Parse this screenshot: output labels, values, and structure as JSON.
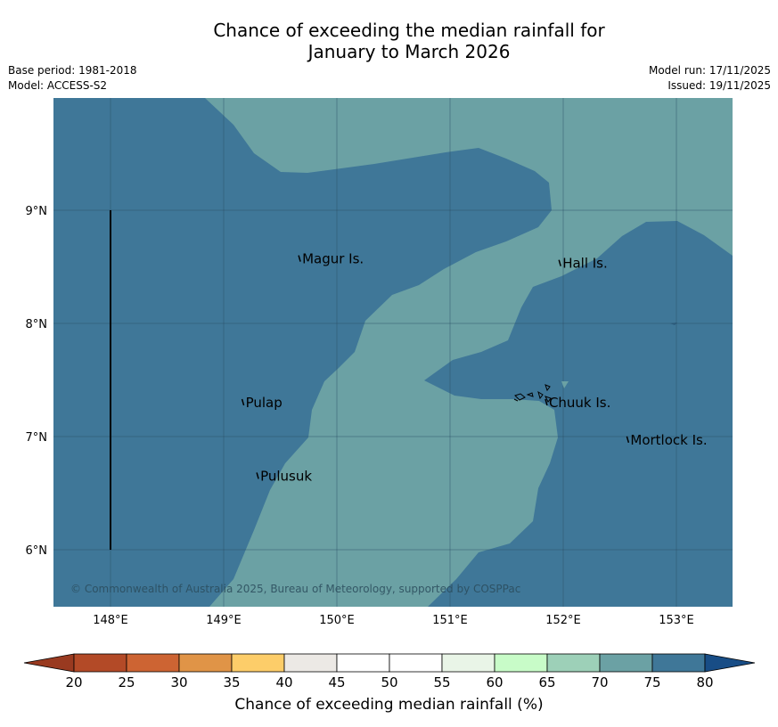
{
  "title_line1": "Chance of exceeding the median rainfall for",
  "title_line2": "January to March 2026",
  "meta_left": {
    "base_period": "Base period: 1981-2018",
    "model": "Model: ACCESS-S2"
  },
  "meta_right": {
    "model_run": "Model run: 17/11/2025",
    "issued": "Issued: 19/11/2025"
  },
  "axes": {
    "lon_ticks": [
      "148°E",
      "149°E",
      "150°E",
      "151°E",
      "152°E",
      "153°E"
    ],
    "lat_ticks": [
      "9°N",
      "8°N",
      "7°N",
      "6°N"
    ]
  },
  "places": [
    {
      "name": "Magur Is.",
      "lon": 149.67,
      "lat": 8.57
    },
    {
      "name": "Hall Is.",
      "lon": 151.97,
      "lat": 8.53
    },
    {
      "name": "Pulap",
      "lon": 149.17,
      "lat": 7.3
    },
    {
      "name": "Chuuk Is.",
      "lon": 151.85,
      "lat": 7.3
    },
    {
      "name": "Mortlock Is.",
      "lon": 152.57,
      "lat": 6.97
    },
    {
      "name": "Pulusuk",
      "lon": 149.3,
      "lat": 6.65
    }
  ],
  "copyright": "© Commonwealth of Australia 2025, Bureau of Meteorology, supported by COSPPac",
  "colorbar": {
    "label": "Chance of exceeding median rainfall (%)",
    "ticks": [
      "20",
      "25",
      "30",
      "35",
      "40",
      "45",
      "50",
      "55",
      "60",
      "65",
      "70",
      "75",
      "80"
    ],
    "colors": [
      "#b34a27",
      "#cd6433",
      "#e09447",
      "#fdcd69",
      "#ece9e5",
      "#ffffff",
      "#ffffff",
      "#e9f5e7",
      "#c8fcc8",
      "#9dd0b8",
      "#6ba1a4",
      "#3f7798"
    ],
    "under_color": "#993a20",
    "over_color": "#184d86"
  },
  "map_colors": {
    "dark": "#3f7798",
    "light": "#6ba1a4"
  }
}
